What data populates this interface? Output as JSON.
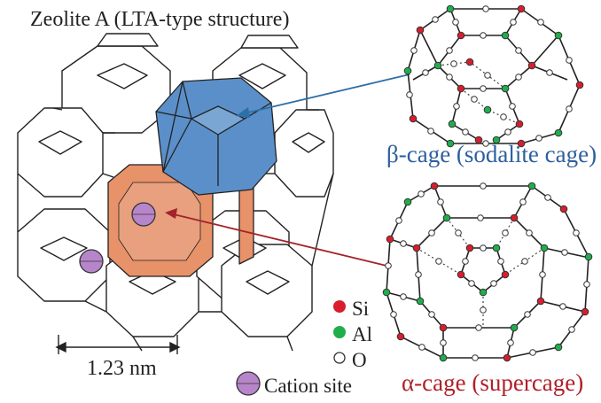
{
  "title": "Zeolite A (LTA-type structure)",
  "beta_cage_label": "β-cage (sodalite cage)",
  "alpha_cage_label": "α-cage (supercage)",
  "dimension_label": "1.23 nm",
  "legend": {
    "si": "Si",
    "al": "Al",
    "o": "O",
    "cation": "Cation site"
  },
  "colors": {
    "si": "#d81e2c",
    "al": "#1fae4b",
    "o": "#ffffff",
    "cation": "#b785c9",
    "beta_cage": "#5b8fc9",
    "alpha_cage": "#e8926a",
    "beta_arrow": "#2d6fa8",
    "alpha_arrow": "#a3232a"
  }
}
